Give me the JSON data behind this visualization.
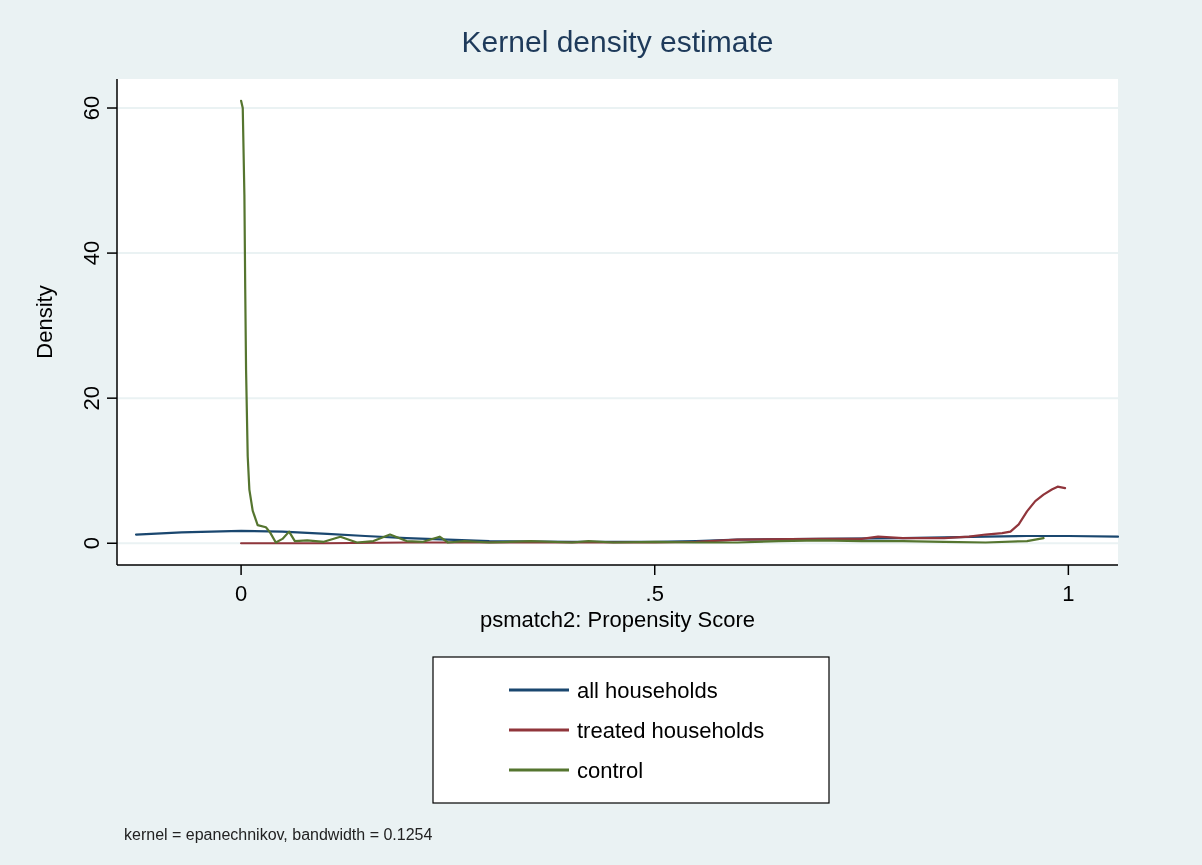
{
  "chart_data": {
    "type": "line",
    "title": "Kernel density estimate",
    "xlabel": "psmatch2: Propensity Score",
    "ylabel": "Density",
    "xlim": [
      -0.15,
      1.06
    ],
    "ylim": [
      -3,
      64
    ],
    "xticks": [
      0,
      {
        "value": 0.5,
        "label": ".5"
      },
      1
    ],
    "yticks": [
      0,
      20,
      40,
      60
    ],
    "grid": "y",
    "legend": "bottom",
    "line_style": "solid",
    "annotations": [
      "kernel = epanechnikov, bandwidth = 0.1254"
    ],
    "series": [
      {
        "name": "all households",
        "color": "#1a476f",
        "x": [
          -0.127,
          -0.072,
          0,
          0.05,
          0.104,
          0.15,
          0.2,
          0.25,
          0.3,
          0.4,
          0.5,
          0.55,
          0.6,
          0.7,
          0.8,
          0.85,
          0.9,
          0.95,
          1.0,
          1.06
        ],
        "values": [
          1.2,
          1.5,
          1.7,
          1.6,
          1.3,
          1.0,
          0.7,
          0.5,
          0.3,
          0.2,
          0.2,
          0.3,
          0.5,
          0.6,
          0.7,
          0.8,
          0.9,
          1.0,
          1.0,
          0.9
        ]
      },
      {
        "name": "treated households",
        "color": "#90353b",
        "x": [
          0,
          0.1,
          0.2,
          0.3,
          0.4,
          0.5,
          0.55,
          0.6,
          0.7,
          0.75,
          0.77,
          0.8,
          0.85,
          0.88,
          0.9,
          0.92,
          0.93,
          0.94,
          0.95,
          0.96,
          0.97,
          0.98,
          0.987,
          0.996
        ],
        "values": [
          0,
          0,
          0.1,
          0.1,
          0.1,
          0.1,
          0.2,
          0.5,
          0.6,
          0.6,
          0.9,
          0.7,
          0.7,
          0.9,
          1.2,
          1.4,
          1.6,
          2.6,
          4.4,
          5.8,
          6.7,
          7.4,
          7.8,
          7.6
        ]
      },
      {
        "name": "control",
        "color": "#55752f",
        "x": [
          0,
          0.002,
          0.004,
          0.005,
          0.006,
          0.008,
          0.01,
          0.014,
          0.02,
          0.03,
          0.035,
          0.042,
          0.05,
          0.058,
          0.065,
          0.08,
          0.1,
          0.12,
          0.14,
          0.16,
          0.18,
          0.2,
          0.22,
          0.24,
          0.25,
          0.27,
          0.3,
          0.35,
          0.4,
          0.42,
          0.45,
          0.5,
          0.55,
          0.6,
          0.65,
          0.7,
          0.75,
          0.8,
          0.85,
          0.9,
          0.95,
          0.97
        ],
        "values": [
          61,
          60,
          48,
          35,
          24,
          12,
          7.4,
          4.5,
          2.5,
          2.2,
          1.5,
          0.1,
          0.6,
          1.6,
          0.3,
          0.4,
          0.2,
          0.9,
          0.1,
          0.3,
          1.2,
          0.3,
          0.2,
          0.9,
          0.1,
          0.3,
          0.1,
          0.3,
          0.1,
          0.3,
          0.1,
          0.2,
          0.1,
          0.1,
          0.3,
          0.4,
          0.3,
          0.3,
          0.2,
          0.1,
          0.3,
          0.7
        ]
      }
    ]
  }
}
